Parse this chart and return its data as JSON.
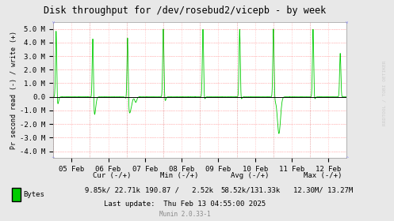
{
  "title": "Disk throughput for /dev/rosebud2/vicepb - by week",
  "ylabel": "Pr second read (-) / write (+)",
  "background_color": "#e8e8e8",
  "plot_bg_color": "#ffffff",
  "grid_color": "#ffaaaa",
  "line_color": "#00cc00",
  "ylim": [
    -4500000,
    5500000
  ],
  "yticks": [
    -4000000,
    -3000000,
    -2000000,
    -1000000,
    0,
    1000000,
    2000000,
    3000000,
    4000000,
    5000000
  ],
  "ytick_labels": [
    "-4.0 M",
    "-3.0 M",
    "-2.0 M",
    "-1.0 M",
    "0.0",
    "1.0 M",
    "2.0 M",
    "3.0 M",
    "4.0 M",
    "5.0 M"
  ],
  "xtick_labels": [
    "05 Feb",
    "06 Feb",
    "07 Feb",
    "08 Feb",
    "09 Feb",
    "10 Feb",
    "11 Feb",
    "12 Feb"
  ],
  "legend_label": "Bytes",
  "legend_color": "#00cc00",
  "cur_label": "Cur (-/+)",
  "cur_value": "9.85k/ 22.71k",
  "min_label": "Min (-/+)",
  "min_value": "190.87 /   2.52k",
  "avg_label": "Avg (-/+)",
  "avg_value": "58.52k/131.33k",
  "max_label": "Max (-/+)",
  "max_value": "12.30M/ 13.27M",
  "last_update": "Last update:  Thu Feb 13 04:55:00 2025",
  "munin_version": "Munin 2.0.33-1",
  "rrdtool_text": "RRDTOOL / TOBI OETIKER"
}
